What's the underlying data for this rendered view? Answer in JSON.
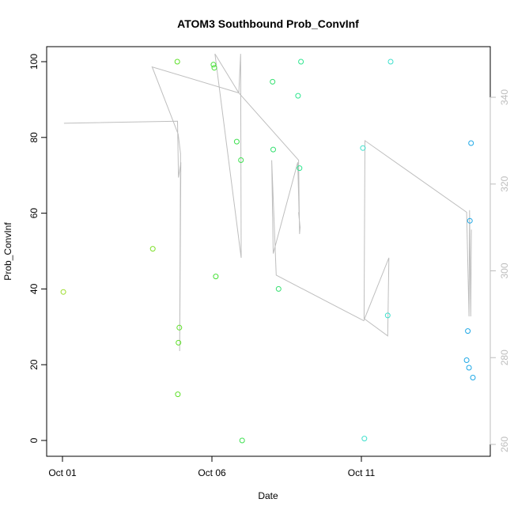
{
  "chart_data": {
    "type": "scatter",
    "title": "ATOM3 Southbound Prob_ConvInf",
    "xlabel": "Date",
    "ylabel": "Prob_ConvInf",
    "x_ticks": [
      {
        "day": 1,
        "label": "Oct 01"
      },
      {
        "day": 6,
        "label": "Oct 06"
      },
      {
        "day": 11,
        "label": "Oct 11"
      }
    ],
    "xlim_days": [
      1,
      14.8
    ],
    "ylim": [
      0,
      100
    ],
    "y_ticks": [
      0,
      20,
      40,
      60,
      80,
      100
    ],
    "y2lim": [
      260,
      350
    ],
    "y2_ticks": [
      260,
      280,
      300,
      320,
      340
    ],
    "grid": false,
    "colors": {
      "line": "#bebebe",
      "right_axis": "#bdbdbd",
      "point_early": "#9bdc2a",
      "point_mid": "#3de04a",
      "point_late": "#2ee6a8",
      "point_cyan": "#40e0e0",
      "point_blue": "#1fa8e6"
    },
    "points": [
      {
        "day": 1.03,
        "y": 39.2,
        "color": "#9bdc2a"
      },
      {
        "day": 4.02,
        "y": 50.6,
        "color": "#7ee02a"
      },
      {
        "day": 4.84,
        "y": 100.0,
        "color": "#5fe02a"
      },
      {
        "day": 4.86,
        "y": 12.2,
        "color": "#5fe02a"
      },
      {
        "day": 4.88,
        "y": 25.8,
        "color": "#5fe02a"
      },
      {
        "day": 4.91,
        "y": 29.8,
        "color": "#5fe02a"
      },
      {
        "day": 6.05,
        "y": 99.2,
        "color": "#45e035"
      },
      {
        "day": 6.08,
        "y": 98.4,
        "color": "#45e035"
      },
      {
        "day": 6.13,
        "y": 43.3,
        "color": "#45e035"
      },
      {
        "day": 6.83,
        "y": 78.9,
        "color": "#3ee050"
      },
      {
        "day": 6.97,
        "y": 74.0,
        "color": "#3ee050"
      },
      {
        "day": 7.01,
        "y": 0.0,
        "color": "#3ee050"
      },
      {
        "day": 8.03,
        "y": 94.7,
        "color": "#35e070"
      },
      {
        "day": 8.05,
        "y": 76.8,
        "color": "#35e070"
      },
      {
        "day": 8.23,
        "y": 40.0,
        "color": "#35e070"
      },
      {
        "day": 8.88,
        "y": 91.0,
        "color": "#2ee68f"
      },
      {
        "day": 8.93,
        "y": 71.9,
        "color": "#2ee68f"
      },
      {
        "day": 8.98,
        "y": 100.0,
        "color": "#2ee68f"
      },
      {
        "day": 11.05,
        "y": 77.2,
        "color": "#3ee0cc"
      },
      {
        "day": 11.1,
        "y": 0.5,
        "color": "#3ee0cc"
      },
      {
        "day": 11.88,
        "y": 33.0,
        "color": "#3ee0cc"
      },
      {
        "day": 11.98,
        "y": 100.0,
        "color": "#3ee0cc"
      },
      {
        "day": 14.52,
        "y": 21.2,
        "color": "#1fa8e6"
      },
      {
        "day": 14.56,
        "y": 28.9,
        "color": "#1fa8e6"
      },
      {
        "day": 14.6,
        "y": 19.2,
        "color": "#1fa8e6"
      },
      {
        "day": 14.63,
        "y": 58.0,
        "color": "#1fa8e6"
      },
      {
        "day": 14.67,
        "y": 78.5,
        "color": "#1fa8e6"
      },
      {
        "day": 14.73,
        "y": 16.6,
        "color": "#1fa8e6"
      }
    ],
    "line_y2": [
      {
        "day": 1.05,
        "y2": 334.0
      },
      {
        "day": 4.85,
        "y2": 334.5
      },
      {
        "day": 4.88,
        "y2": 321.5
      },
      {
        "day": 4.96,
        "y2": 325.0
      },
      {
        "day": 4.92,
        "y2": 281.5
      },
      {
        "day": 4.95,
        "y2": 327.0
      },
      {
        "day": 4.87,
        "y2": 331.5
      },
      {
        "day": 4.0,
        "y2": 347.0
      },
      {
        "day": 6.9,
        "y2": 341.0
      },
      {
        "day": 6.1,
        "y2": 350.0
      },
      {
        "day": 6.98,
        "y2": 303.0
      },
      {
        "day": 6.96,
        "y2": 350.0
      },
      {
        "day": 6.9,
        "y2": 341.0
      },
      {
        "day": 8.9,
        "y2": 325.5
      },
      {
        "day": 8.93,
        "y2": 308.5
      },
      {
        "day": 8.95,
        "y2": 310.0
      },
      {
        "day": 8.9,
        "y2": 313.5
      },
      {
        "day": 8.92,
        "y2": 312.0
      },
      {
        "day": 8.87,
        "y2": 325.0
      },
      {
        "day": 8.05,
        "y2": 304.0
      },
      {
        "day": 8.0,
        "y2": 325.5
      },
      {
        "day": 8.15,
        "y2": 299.0
      },
      {
        "day": 11.08,
        "y2": 288.5
      },
      {
        "day": 11.92,
        "y2": 303.0
      },
      {
        "day": 11.88,
        "y2": 285.0
      },
      {
        "day": 11.09,
        "y2": 289.0
      },
      {
        "day": 11.12,
        "y2": 330.0
      },
      {
        "day": 14.52,
        "y2": 313.5
      },
      {
        "day": 14.6,
        "y2": 289.5
      },
      {
        "day": 14.62,
        "y2": 314.0
      },
      {
        "day": 14.66,
        "y2": 289.5
      },
      {
        "day": 14.68,
        "y2": 309.5
      }
    ]
  }
}
